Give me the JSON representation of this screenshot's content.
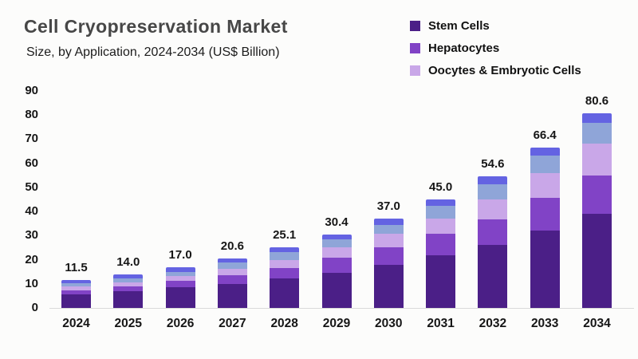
{
  "header": {
    "title": "Cell Cryopreservation Market",
    "subtitle": "Size, by Application, 2024-2034 (US$ Billion)"
  },
  "legend": {
    "position": "top-right",
    "items": [
      {
        "label": "Stem Cells",
        "color": "#4b1f87"
      },
      {
        "label": "Hepatocytes",
        "color": "#8143c6"
      },
      {
        "label": "Oocytes & Embryotic Cells",
        "color": "#c9a7e8"
      }
    ]
  },
  "chart_data": {
    "type": "bar",
    "stacked": true,
    "title": "Cell Cryopreservation Market",
    "subtitle": "Size, by Application, 2024-2034 (US$ Billion)",
    "unit": "US$ Billion",
    "categories": [
      "2024",
      "2025",
      "2026",
      "2027",
      "2028",
      "2029",
      "2030",
      "2031",
      "2032",
      "2033",
      "2034"
    ],
    "series": [
      {
        "name": "Stem Cells",
        "color": "#4b1f87",
        "values": [
          5.5,
          6.9,
          8.7,
          10.0,
          12.1,
          14.5,
          17.8,
          21.7,
          26.1,
          32.1,
          39.0
        ]
      },
      {
        "name": "Hepatocytes",
        "color": "#8143c6",
        "values": [
          1.7,
          1.9,
          2.6,
          3.5,
          4.6,
          6.2,
          7.4,
          9.1,
          10.7,
          13.5,
          15.9
        ]
      },
      {
        "name": "Oocytes & Embryotic Cells",
        "color": "#c9a7e8",
        "values": [
          1.7,
          1.9,
          2.0,
          2.7,
          3.3,
          4.4,
          5.5,
          6.4,
          8.2,
          10.3,
          13.1
        ]
      },
      {
        "name": "unlabeled-segment-slate-blue",
        "color": "#8fa5d8",
        "values": [
          1.3,
          1.5,
          1.7,
          2.5,
          3.1,
          3.4,
          3.8,
          5.2,
          6.3,
          7.4,
          8.8
        ]
      },
      {
        "name": "unlabeled-segment-blue",
        "color": "#6463e2",
        "values": [
          1.3,
          1.8,
          2.0,
          1.9,
          2.0,
          1.9,
          2.5,
          2.6,
          3.3,
          3.1,
          3.8
        ]
      }
    ],
    "totals": [
      11.5,
      14.0,
      17.0,
      20.6,
      25.1,
      30.4,
      37.0,
      45.0,
      54.6,
      66.4,
      80.6
    ],
    "total_labels": [
      "11.5",
      "14.0",
      "17.0",
      "20.6",
      "25.1",
      "30.4",
      "37.0",
      "45.0",
      "54.6",
      "66.4",
      "80.6"
    ],
    "xlabel": "",
    "ylabel": "",
    "ylim": [
      0,
      90
    ],
    "yticks": [
      0,
      10,
      20,
      30,
      40,
      50,
      60,
      70,
      80,
      90
    ],
    "grid": false,
    "legend_position": "top-right"
  },
  "colors": {
    "background": "#fcfcfb",
    "title_text": "#474747",
    "body_text": "#161616",
    "axis_line": "#dadada"
  }
}
